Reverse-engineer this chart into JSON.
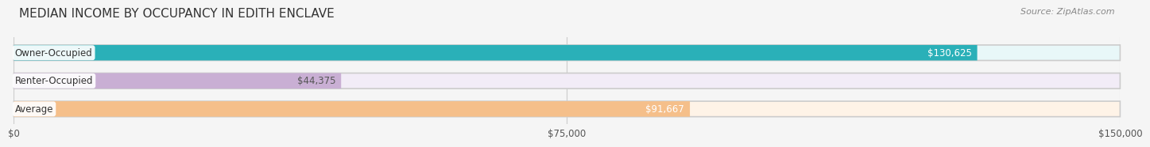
{
  "title": "MEDIAN INCOME BY OCCUPANCY IN EDITH ENCLAVE",
  "source": "Source: ZipAtlas.com",
  "categories": [
    "Owner-Occupied",
    "Renter-Occupied",
    "Average"
  ],
  "values": [
    130625,
    44375,
    91667
  ],
  "labels": [
    "$130,625",
    "$44,375",
    "$91,667"
  ],
  "bar_colors": [
    "#2ab0b8",
    "#c9afd4",
    "#f5bf8a"
  ],
  "bar_bg_colors": [
    "#e8f7f8",
    "#f2ecf7",
    "#fef3e7"
  ],
  "label_colors": [
    "#ffffff",
    "#555555",
    "#ffffff"
  ],
  "xlim": [
    0,
    150000
  ],
  "xticks": [
    0,
    75000,
    150000
  ],
  "xticklabels": [
    "$0",
    "$75,000",
    "$150,000"
  ],
  "background_color": "#f5f5f5",
  "title_fontsize": 11,
  "bar_height": 0.55,
  "figsize": [
    14.06,
    1.97
  ]
}
